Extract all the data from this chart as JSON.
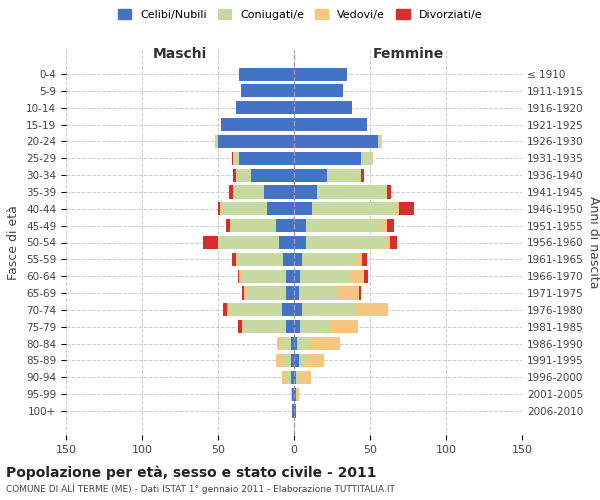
{
  "age_groups": [
    "0-4",
    "5-9",
    "10-14",
    "15-19",
    "20-24",
    "25-29",
    "30-34",
    "35-39",
    "40-44",
    "45-49",
    "50-54",
    "55-59",
    "60-64",
    "65-69",
    "70-74",
    "75-79",
    "80-84",
    "85-89",
    "90-94",
    "95-99",
    "100+"
  ],
  "birth_years": [
    "2006-2010",
    "2001-2005",
    "1996-2000",
    "1991-1995",
    "1986-1990",
    "1981-1985",
    "1976-1980",
    "1971-1975",
    "1966-1970",
    "1961-1965",
    "1956-1960",
    "1951-1955",
    "1946-1950",
    "1941-1945",
    "1936-1940",
    "1931-1935",
    "1926-1930",
    "1921-1925",
    "1916-1920",
    "1911-1915",
    "≤ 1910"
  ],
  "colors": {
    "celibi": "#4472c4",
    "coniugati": "#c5d9a0",
    "vedovi": "#f5c67f",
    "divorziati": "#d32f2f"
  },
  "males": {
    "celibi": [
      36,
      35,
      38,
      48,
      50,
      36,
      28,
      20,
      18,
      12,
      10,
      7,
      5,
      5,
      8,
      5,
      2,
      2,
      2,
      1,
      1
    ],
    "coniugati": [
      0,
      0,
      0,
      0,
      2,
      4,
      10,
      20,
      30,
      30,
      40,
      30,
      30,
      26,
      34,
      28,
      6,
      5,
      3,
      0,
      0
    ],
    "vedovi": [
      0,
      0,
      0,
      0,
      0,
      0,
      0,
      0,
      1,
      0,
      0,
      1,
      1,
      2,
      2,
      1,
      3,
      5,
      3,
      1,
      0
    ],
    "divorziati": [
      0,
      0,
      0,
      0,
      0,
      1,
      2,
      3,
      1,
      3,
      10,
      3,
      1,
      1,
      3,
      3,
      0,
      0,
      0,
      0,
      0
    ]
  },
  "females": {
    "nubili": [
      35,
      32,
      38,
      48,
      55,
      44,
      22,
      15,
      12,
      8,
      8,
      5,
      4,
      3,
      5,
      4,
      2,
      3,
      1,
      1,
      1
    ],
    "coniugate": [
      0,
      0,
      0,
      0,
      3,
      8,
      22,
      45,
      55,
      50,
      52,
      35,
      32,
      25,
      35,
      20,
      8,
      5,
      2,
      0,
      0
    ],
    "vedove": [
      0,
      0,
      0,
      0,
      0,
      0,
      0,
      1,
      2,
      3,
      3,
      5,
      10,
      15,
      22,
      18,
      20,
      12,
      8,
      2,
      0
    ],
    "divorziate": [
      0,
      0,
      0,
      0,
      0,
      0,
      2,
      3,
      10,
      5,
      5,
      3,
      3,
      1,
      0,
      0,
      0,
      0,
      0,
      0,
      0
    ]
  },
  "xlim": 150,
  "title": "Popolazione per età, sesso e stato civile - 2011",
  "subtitle": "COMUNE DI ALÌ TERME (ME) - Dati ISTAT 1° gennaio 2011 - Elaborazione TUTTITALIA.IT",
  "ylabel_left": "Fasce di età",
  "ylabel_right": "Anni di nascita"
}
